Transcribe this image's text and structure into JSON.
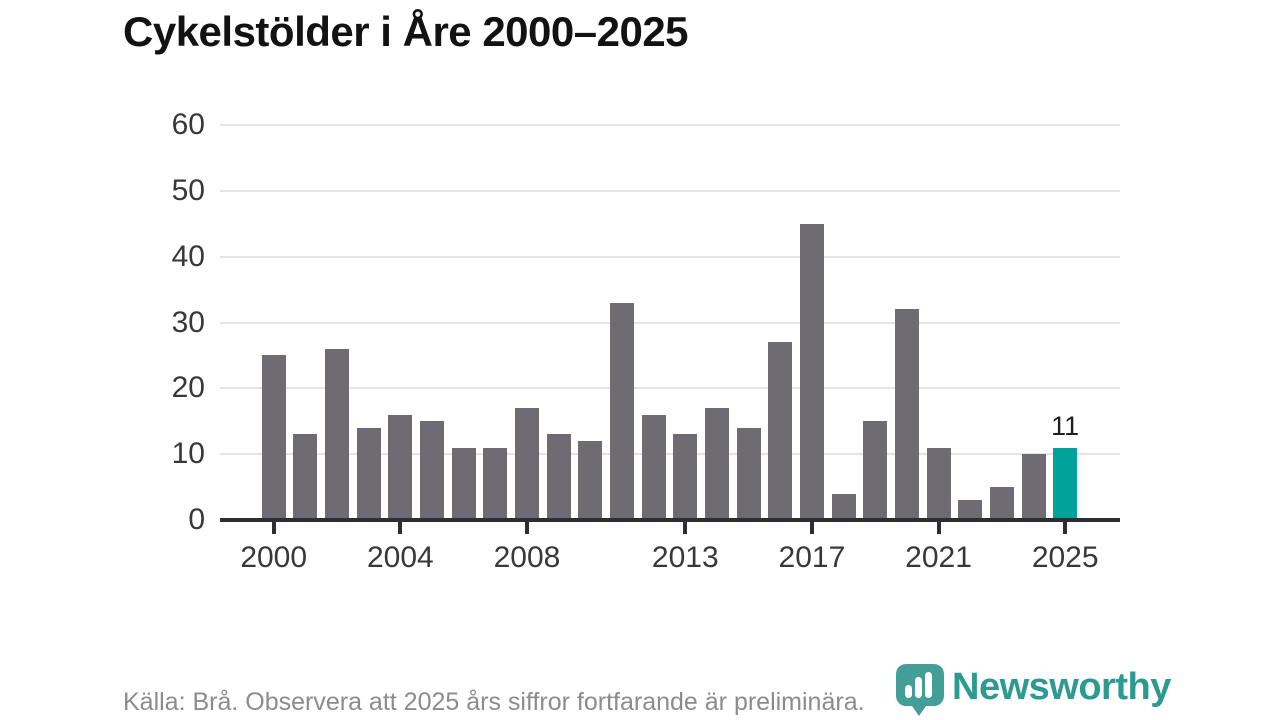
{
  "title": "Cykelstölder i Åre 2000–2025",
  "footer": {
    "source_note": "Källa: Brå. Observera att 2025 års siffror fortfarande är preliminära."
  },
  "branding": {
    "wordmark": "Newsworthy",
    "logo_icon": "newsworthy-pin-barchart-icon"
  },
  "colors": {
    "background": "#ffffff",
    "bar_default": "#6e6b72",
    "bar_highlight": "#00a39a",
    "grid": "#e4e4e4",
    "axis": "#2e2e2e",
    "axis_label": "#383838",
    "title_text": "#121212",
    "footer_text": "#8c8c8c",
    "data_label": "#1f1f1f",
    "logo_icon": "#429e97",
    "wordmark": "#2d9a92"
  },
  "chart_data": {
    "type": "bar",
    "title": "Cykelstölder i Åre 2000–2025",
    "xlabel": "",
    "ylabel": "",
    "x": [
      2000,
      2001,
      2002,
      2003,
      2004,
      2005,
      2006,
      2007,
      2008,
      2009,
      2010,
      2011,
      2012,
      2013,
      2014,
      2015,
      2016,
      2017,
      2018,
      2019,
      2020,
      2021,
      2022,
      2023,
      2024,
      2025
    ],
    "values": [
      25,
      13,
      26,
      14,
      16,
      15,
      11,
      11,
      17,
      13,
      12,
      33,
      16,
      13,
      17,
      14,
      27,
      45,
      4,
      15,
      32,
      11,
      3,
      5,
      10,
      11
    ],
    "highlight_year": 2025,
    "data_labels": [
      {
        "year": 2025,
        "label": "11"
      }
    ],
    "x_tick_years": [
      2000,
      2004,
      2008,
      2013,
      2017,
      2021,
      2025
    ],
    "x_tick_labels": [
      "2000",
      "2004",
      "2008",
      "2013",
      "2017",
      "2021",
      "2025"
    ],
    "y_ticks": [
      0,
      10,
      20,
      30,
      40,
      50,
      60
    ],
    "ylim": [
      0,
      60
    ],
    "grid": "horizontal",
    "legend": "none"
  }
}
